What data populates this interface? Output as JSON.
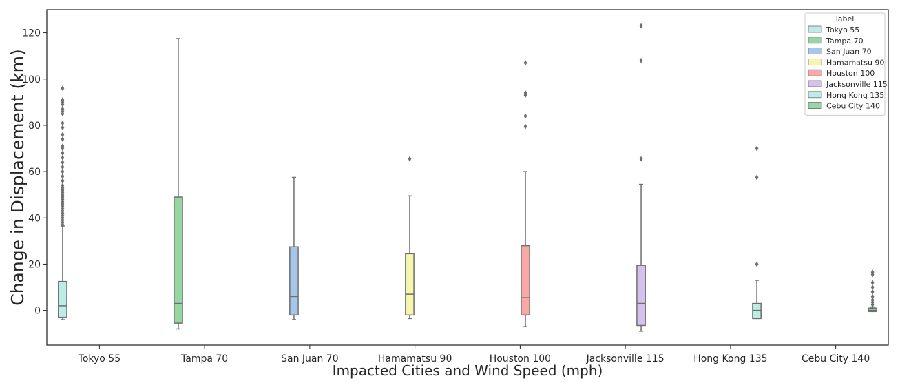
{
  "chart_data": {
    "type": "boxplot",
    "xlabel": "Impacted Cities and Wind Speed (mph)",
    "ylabel": "Change in Displacement (km)",
    "ylim": [
      -15,
      130
    ],
    "yticks": [
      0,
      20,
      40,
      60,
      80,
      100,
      120
    ],
    "grid": false,
    "legend": {
      "title": "label",
      "placement": "top-right"
    },
    "categories": [
      "Tokyo 55",
      "Tampa 70",
      "San Juan 70",
      "Hamamatsu 90",
      "Houston 100",
      "Jacksonville 115",
      "Hong Kong 135",
      "Cebu City 140"
    ],
    "series": [
      {
        "name": "Tokyo 55",
        "color": "#bdebe6",
        "whisker_low": -4,
        "q1": -3,
        "median": 2,
        "q3": 12.5,
        "whisker_high": 36.5,
        "outliers": [
          37,
          38,
          39,
          40,
          41,
          42,
          43,
          44,
          45,
          46,
          47,
          48,
          49,
          50,
          51,
          52,
          53,
          54,
          56,
          58,
          60,
          62,
          64,
          66,
          68,
          70,
          71,
          74,
          76,
          79,
          81,
          85,
          86,
          87,
          89,
          90,
          91,
          96
        ]
      },
      {
        "name": "Tampa 70",
        "color": "#96d7a1",
        "whisker_low": -8,
        "q1": -5.5,
        "median": 3,
        "q3": 49,
        "whisker_high": 117.5,
        "outliers": []
      },
      {
        "name": "San Juan 70",
        "color": "#a7c7ea",
        "whisker_low": -4,
        "q1": -2,
        "median": 6,
        "q3": 27.5,
        "whisker_high": 57.5,
        "outliers": []
      },
      {
        "name": "Hamamatsu 90",
        "color": "#f6f4ad",
        "whisker_low": -3.5,
        "q1": -2,
        "median": 7,
        "q3": 24.5,
        "whisker_high": 49.5,
        "outliers": [
          65.5
        ]
      },
      {
        "name": "Houston 100",
        "color": "#f7a9a8",
        "whisker_low": -7,
        "q1": -2,
        "median": 5.5,
        "q3": 28,
        "whisker_high": 60,
        "outliers": [
          79.5,
          84,
          93,
          94,
          107
        ]
      },
      {
        "name": "Jacksonville 115",
        "color": "#d5c1f0",
        "whisker_low": -9,
        "q1": -6.5,
        "median": 3,
        "q3": 19.5,
        "whisker_high": 54.5,
        "outliers": [
          65.5,
          108,
          123
        ]
      },
      {
        "name": "Hong Kong 135",
        "color": "#bdebe6",
        "whisker_low": -3.5,
        "q1": -3.5,
        "median": 0,
        "q3": 3,
        "whisker_high": 13,
        "outliers": [
          20,
          57.5,
          70
        ]
      },
      {
        "name": "Cebu City 140",
        "color": "#96d7a1",
        "whisker_low": -0.5,
        "q1": -0.5,
        "median": 0,
        "q3": 1,
        "whisker_high": 1.5,
        "outliers": [
          2.5,
          3.5,
          4.5,
          6,
          8,
          10,
          12,
          15.5,
          16.5
        ]
      }
    ]
  }
}
